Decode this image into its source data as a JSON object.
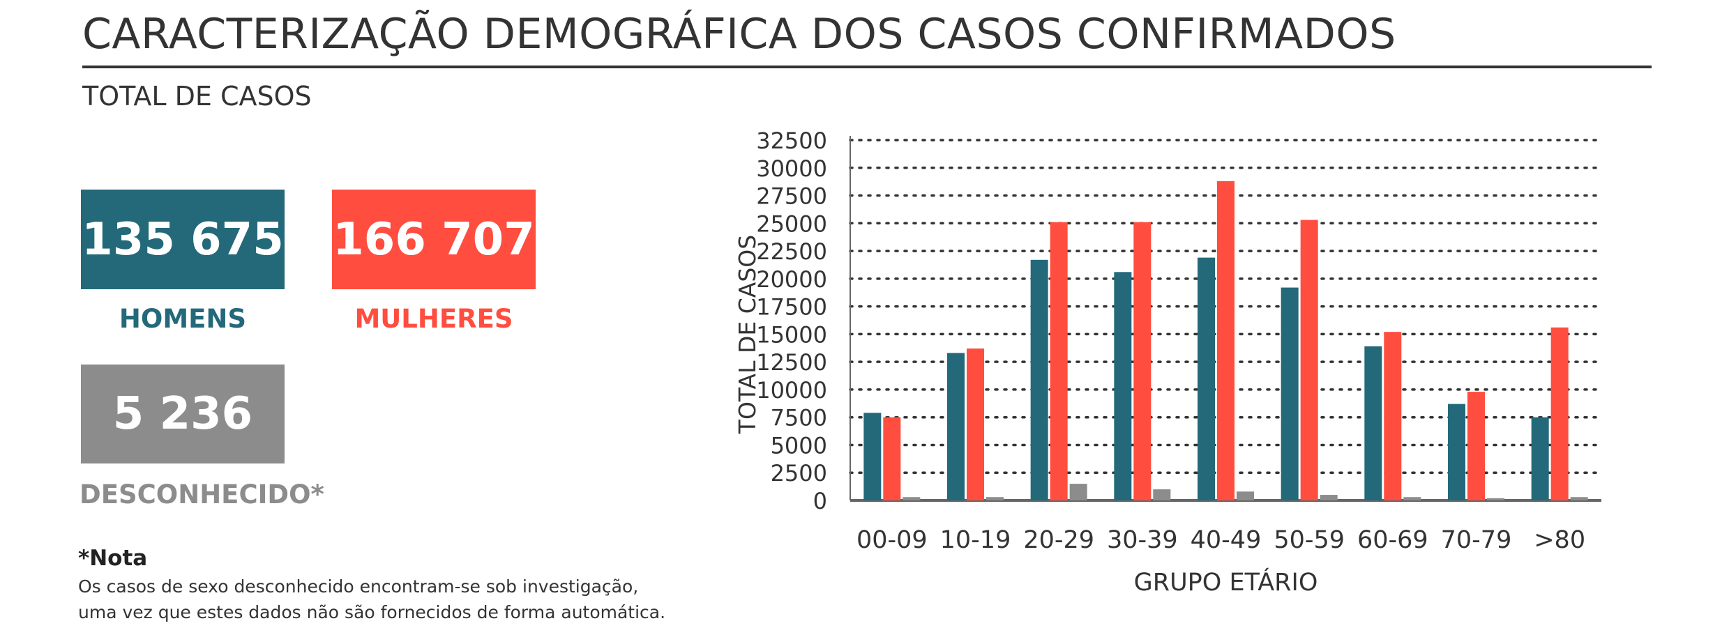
{
  "header": {
    "title": "CARACTERIZAÇÃO DEMOGRÁFICA DOS CASOS CONFIRMADOS",
    "subtitle": "TOTAL DE CASOS"
  },
  "stats": {
    "homens": {
      "value": "135 675",
      "label": "HOMENS",
      "color": "#23697A"
    },
    "mulheres": {
      "value": "166 707",
      "label": "MULHERES",
      "color": "#FF4D3F"
    },
    "desconhecido": {
      "value": "5 236",
      "label": "DESCONHECIDO*",
      "color": "#8C8C8C"
    }
  },
  "note": {
    "title": "*Nota",
    "lines": [
      "Os casos de sexo desconhecido encontram-se sob investigação,",
      "uma vez que estes dados não são fornecidos de forma automática."
    ]
  },
  "chart_data": {
    "type": "bar",
    "xlabel": "GRUPO ETÁRIO",
    "ylabel": "TOTAL DE CASOS",
    "ylim": [
      0,
      32500
    ],
    "yticks": [
      0,
      2500,
      5000,
      7500,
      10000,
      12500,
      15000,
      17500,
      20000,
      22500,
      25000,
      27500,
      30000,
      32500
    ],
    "grid": "horizontal dotted",
    "legend": "none",
    "categories": [
      "00-09",
      "10-19",
      "20-29",
      "30-39",
      "40-49",
      "50-59",
      "60-69",
      "70-79",
      ">80"
    ],
    "series": [
      {
        "values": [
          7900,
          13300,
          21700,
          20600,
          21900,
          19200,
          13900,
          8700,
          7500
        ],
        "color": "#23697A"
      },
      {
        "values": [
          7500,
          13700,
          25100,
          25100,
          28800,
          25300,
          15200,
          9800,
          15600
        ],
        "color": "#FF4D3F"
      },
      {
        "values": [
          300,
          300,
          1500,
          1000,
          800,
          500,
          300,
          200,
          300
        ],
        "color": "#8C8C8C"
      }
    ]
  }
}
